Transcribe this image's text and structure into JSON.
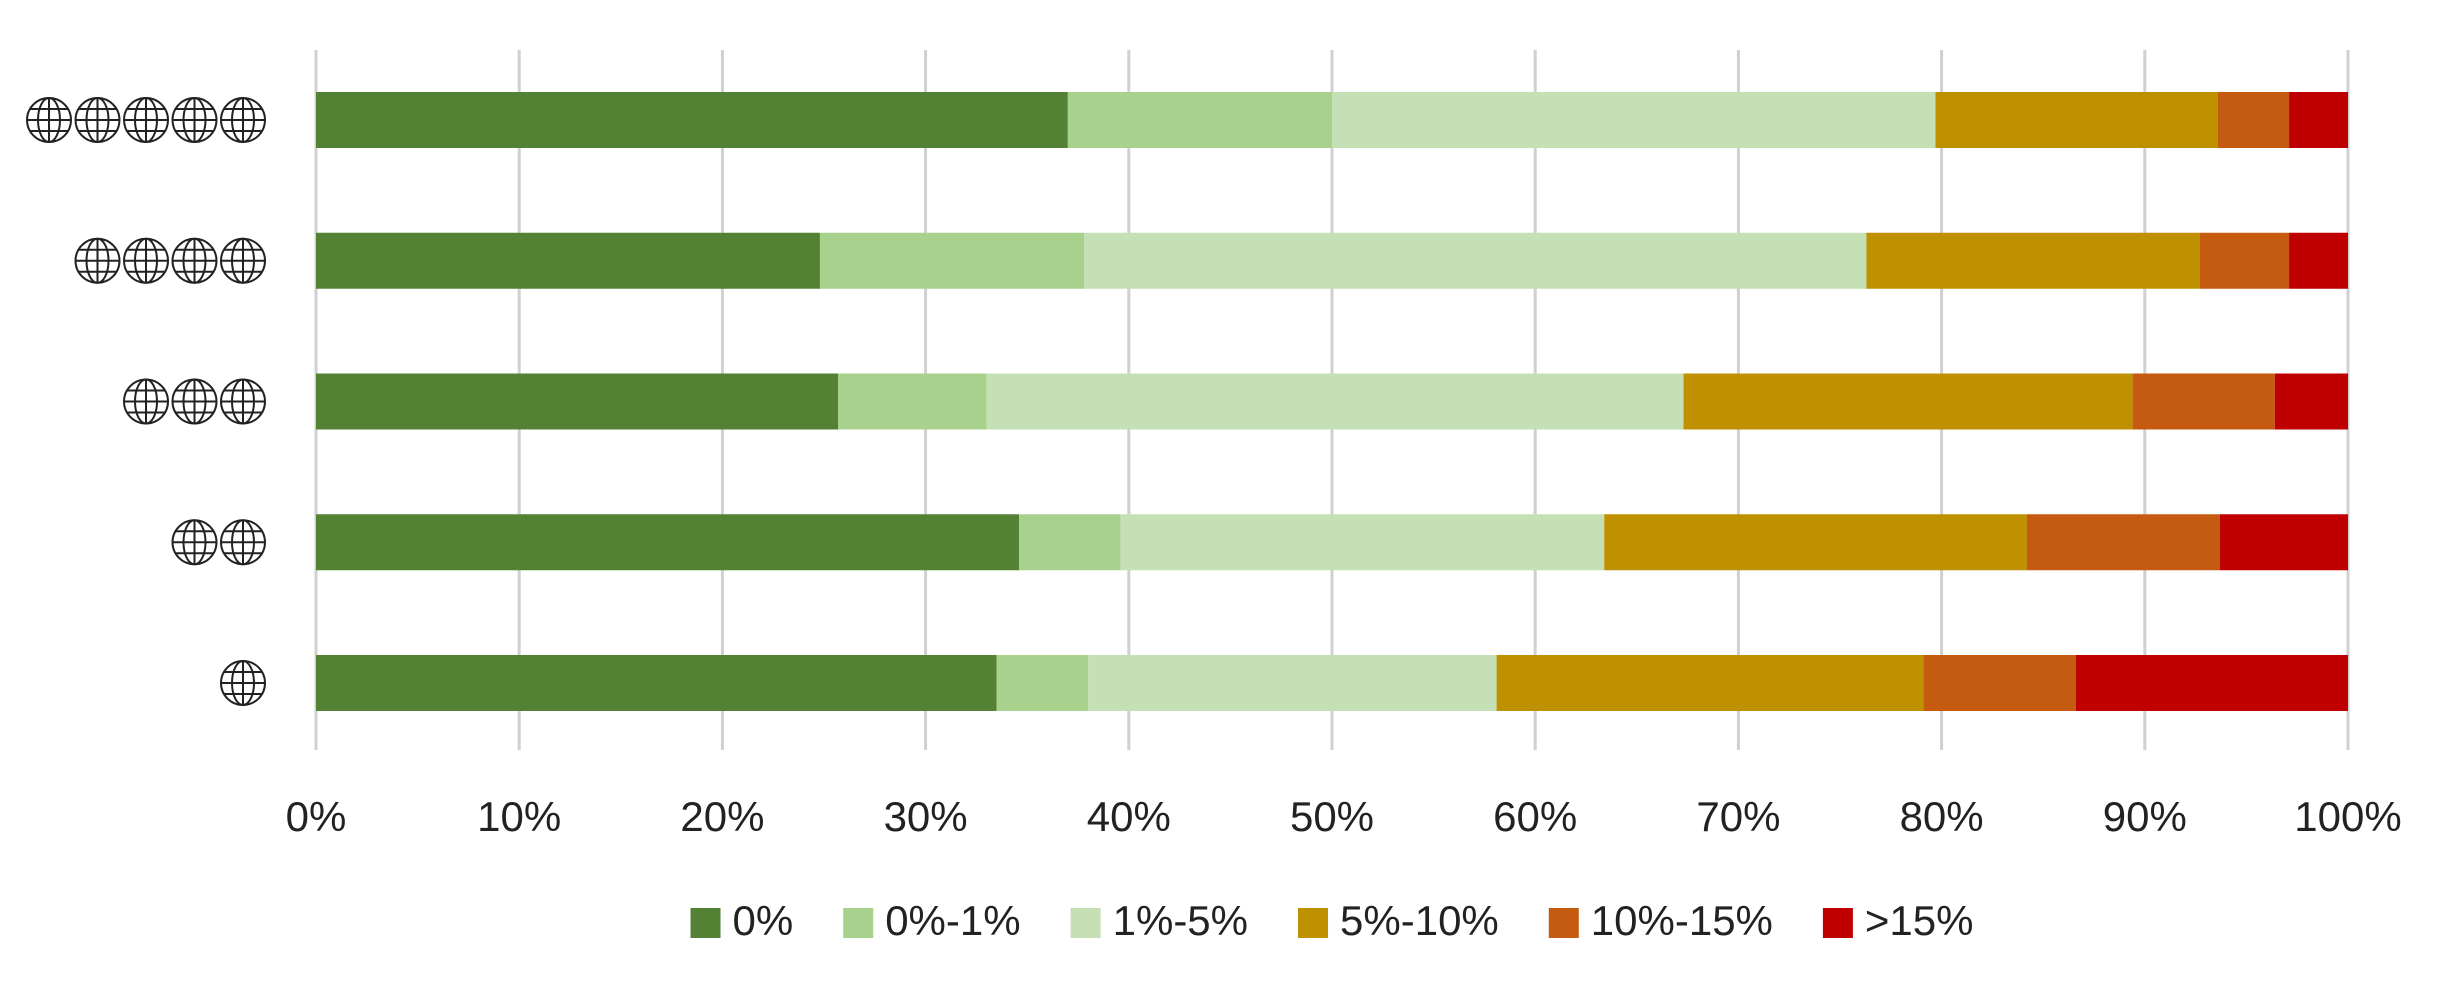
{
  "chart_data": {
    "type": "stacked_barh",
    "categories": [
      null,
      null,
      null,
      null,
      null
    ],
    "series": [
      {
        "name": "0%",
        "color": "#548235",
        "values": [
          37,
          24.8,
          25.7,
          34.6,
          33.5
        ]
      },
      {
        "name": "0%-1%",
        "color": "#a9d18e",
        "values": [
          13,
          13,
          7.3,
          5,
          4.5
        ]
      },
      {
        "name": "1%-5%",
        "color": "#c5e0b4",
        "values": [
          29.7,
          38.5,
          34.3,
          23.8,
          20.1
        ]
      },
      {
        "name": "5%-10%",
        "color": "#bf9000",
        "values": [
          13.9,
          16.4,
          22.1,
          20.8,
          21
        ]
      },
      {
        "name": "10%-15%",
        "color": "#c55a11",
        "values": [
          3.5,
          4.4,
          7,
          9.5,
          7.5
        ]
      },
      {
        "name": ">15%",
        "color": "#c00000",
        "values": [
          2.9,
          2.9,
          3.6,
          6.3,
          13.4
        ]
      }
    ],
    "xlim": [
      0,
      100
    ],
    "xticks": [
      {
        "value": 0,
        "label": "0%"
      },
      {
        "value": 10,
        "label": "10%"
      },
      {
        "value": 20,
        "label": "20%"
      },
      {
        "value": 30,
        "label": "30%"
      },
      {
        "value": 40,
        "label": "40%"
      },
      {
        "value": 50,
        "label": "50%"
      },
      {
        "value": 60,
        "label": "60%"
      },
      {
        "value": 70,
        "label": "70%"
      },
      {
        "value": 80,
        "label": "80%"
      },
      {
        "value": 90,
        "label": "90%"
      },
      {
        "value": 100,
        "label": "100%"
      }
    ],
    "grid": true,
    "legend": "bottom"
  }
}
